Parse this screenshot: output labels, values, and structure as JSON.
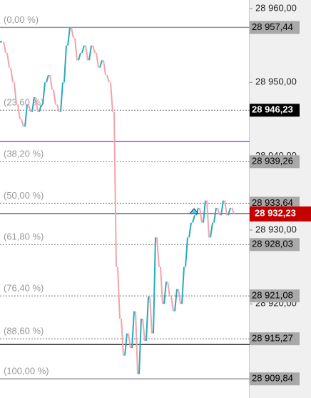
{
  "chart_data": {
    "type": "price",
    "ylim": [
      28961.16,
      28907.25
    ],
    "yticks": [
      {
        "value": 28960,
        "label": "28 960,00"
      },
      {
        "value": 28950,
        "label": "28 950,00"
      },
      {
        "value": 28940,
        "label": "28 940,00"
      },
      {
        "value": 28930,
        "label": "28 930,00"
      },
      {
        "value": 28920,
        "label": "28 920,00"
      },
      {
        "value": 28910,
        "label": "28 910,00"
      }
    ],
    "values": [
      28955.5,
      28954,
      28952,
      28950,
      28947,
      28945,
      28944,
      28947,
      28946,
      28948,
      28946,
      28947,
      28950,
      28951,
      28949,
      28947,
      28946,
      28950,
      28955,
      28957.4,
      28956,
      28953,
      28954,
      28955,
      28953,
      28955,
      28954,
      28952,
      28953,
      28951,
      28950,
      28946,
      28925,
      28918,
      28913,
      28916,
      28914,
      28919,
      28910.5,
      28918,
      28915,
      28921,
      28916,
      28929,
      28925,
      28920,
      28923,
      28921,
      28919,
      28922,
      28920,
      28925,
      28929,
      28931,
      28932,
      28933,
      28931,
      28934,
      28929,
      28931,
      28933,
      28932,
      28934,
      28932,
      28933,
      28932.23
    ],
    "up_color": "#29a9bd",
    "down_color": "#f3a3ab",
    "levels": [
      {
        "label": "(0,00 %)",
        "value": 28957.44,
        "value_label": "28 957,44",
        "style": "solid",
        "highlight": false
      },
      {
        "label": "(23,60 %)",
        "value": 28946.23,
        "value_label": "28 946,23",
        "style": "dotted",
        "highlight": true
      },
      {
        "label": "(38,20 %)",
        "value": 28939.26,
        "value_label": "28 939,26",
        "style": "dotted",
        "highlight": false
      },
      {
        "label": "(50,00 %)",
        "value": 28933.64,
        "value_label": "28 933,64",
        "style": "dotted",
        "highlight": false
      },
      {
        "label": "(61,80 %)",
        "value": 28928.03,
        "value_label": "28 928,03",
        "style": "dotted",
        "highlight": false
      },
      {
        "label": "(76,40 %)",
        "value": 28921.08,
        "value_label": "28 921,08",
        "style": "dotted",
        "highlight": false
      },
      {
        "label": "(88,60 %)",
        "value": 28915.27,
        "value_label": "28 915,27",
        "style": "dotted",
        "highlight": false
      },
      {
        "label": "(100,00 %)",
        "value": 28909.84,
        "value_label": "28 909,84",
        "style": "solid",
        "highlight": false
      }
    ],
    "lines": [
      {
        "value": 28942.0,
        "color": "#9b4fd6"
      },
      {
        "value": 28914.5,
        "color": "#222222"
      }
    ],
    "current": {
      "value": 28932.23,
      "label": "28 932,23",
      "color": "#c40000"
    }
  }
}
